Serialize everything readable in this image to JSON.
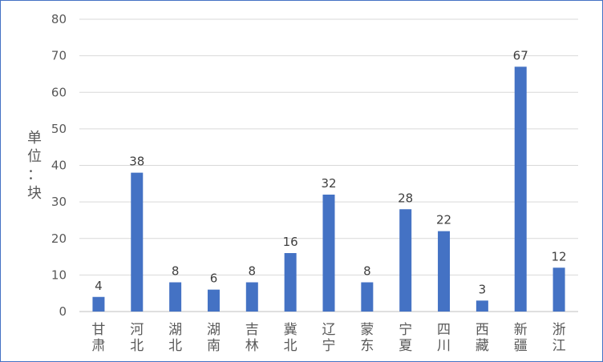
{
  "chart_data": {
    "type": "bar",
    "ylabel": "单位：块",
    "ylim": [
      0,
      80
    ],
    "yticks": [
      0,
      10,
      20,
      30,
      40,
      50,
      60,
      70,
      80
    ],
    "grid": true,
    "categories": [
      [
        "甘",
        "肃"
      ],
      [
        "河",
        "北"
      ],
      [
        "湖",
        "北"
      ],
      [
        "湖",
        "南"
      ],
      [
        "吉",
        "林"
      ],
      [
        "冀",
        "北"
      ],
      [
        "辽",
        "宁"
      ],
      [
        "蒙",
        "东"
      ],
      [
        "宁",
        "夏"
      ],
      [
        "四",
        "川"
      ],
      [
        "西",
        "藏"
      ],
      [
        "新",
        "疆"
      ],
      [
        "浙",
        "江"
      ]
    ],
    "values": [
      4,
      38,
      8,
      6,
      8,
      16,
      32,
      8,
      28,
      22,
      3,
      67,
      12
    ],
    "colors": {
      "bar": "#4472c4"
    }
  }
}
